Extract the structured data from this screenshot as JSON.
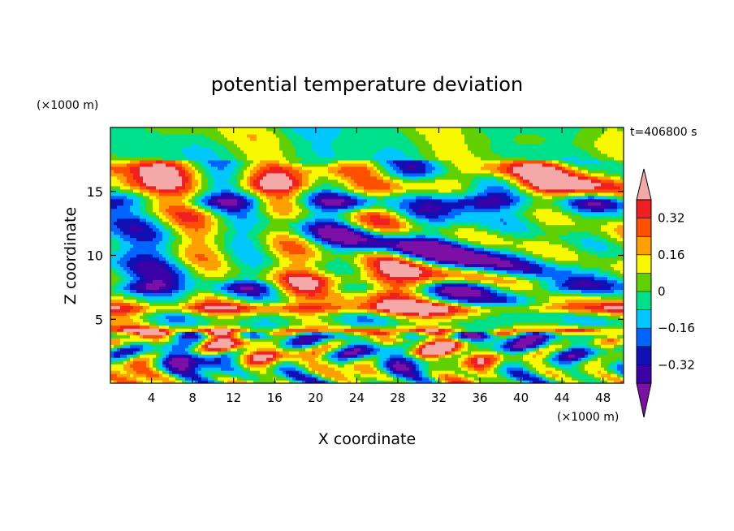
{
  "chart_data": {
    "type": "heatmap",
    "title": "potential temperature deviation",
    "xlabel": "X coordinate",
    "ylabel": "Z coordinate",
    "x_unit": "(×1000 m)",
    "y_unit": "(×1000 m)",
    "time_label": "t=406800 s",
    "xlim": [
      0,
      50
    ],
    "ylim": [
      0,
      20
    ],
    "x_ticks": [
      4,
      8,
      12,
      16,
      20,
      24,
      28,
      32,
      36,
      40,
      44,
      48
    ],
    "y_ticks": [
      5,
      10,
      15
    ],
    "x_tick_labels": [
      "4",
      "8",
      "12",
      "16",
      "20",
      "24",
      "28",
      "32",
      "36",
      "40",
      "44",
      "48"
    ],
    "y_tick_labels": [
      "5",
      "10",
      "15"
    ],
    "colorbar": {
      "levels": [
        -0.4,
        -0.32,
        -0.24,
        -0.16,
        -0.08,
        0,
        0.08,
        0.16,
        0.24,
        0.32,
        0.4
      ],
      "labels": [
        "0.32",
        "0.16",
        "0",
        "−0.16",
        "−0.32"
      ],
      "label_values": [
        0.32,
        0.16,
        0,
        -0.16,
        -0.32
      ],
      "colors": [
        "#7b0fa6",
        "#3b00a6",
        "#1010b4",
        "#0064ff",
        "#00c8ff",
        "#00e08a",
        "#60d000",
        "#f8f800",
        "#ffa000",
        "#ff5000",
        "#f02020",
        "#f4a8a8"
      ],
      "extend": "both"
    },
    "field_description_hint": "layered bands"
  }
}
